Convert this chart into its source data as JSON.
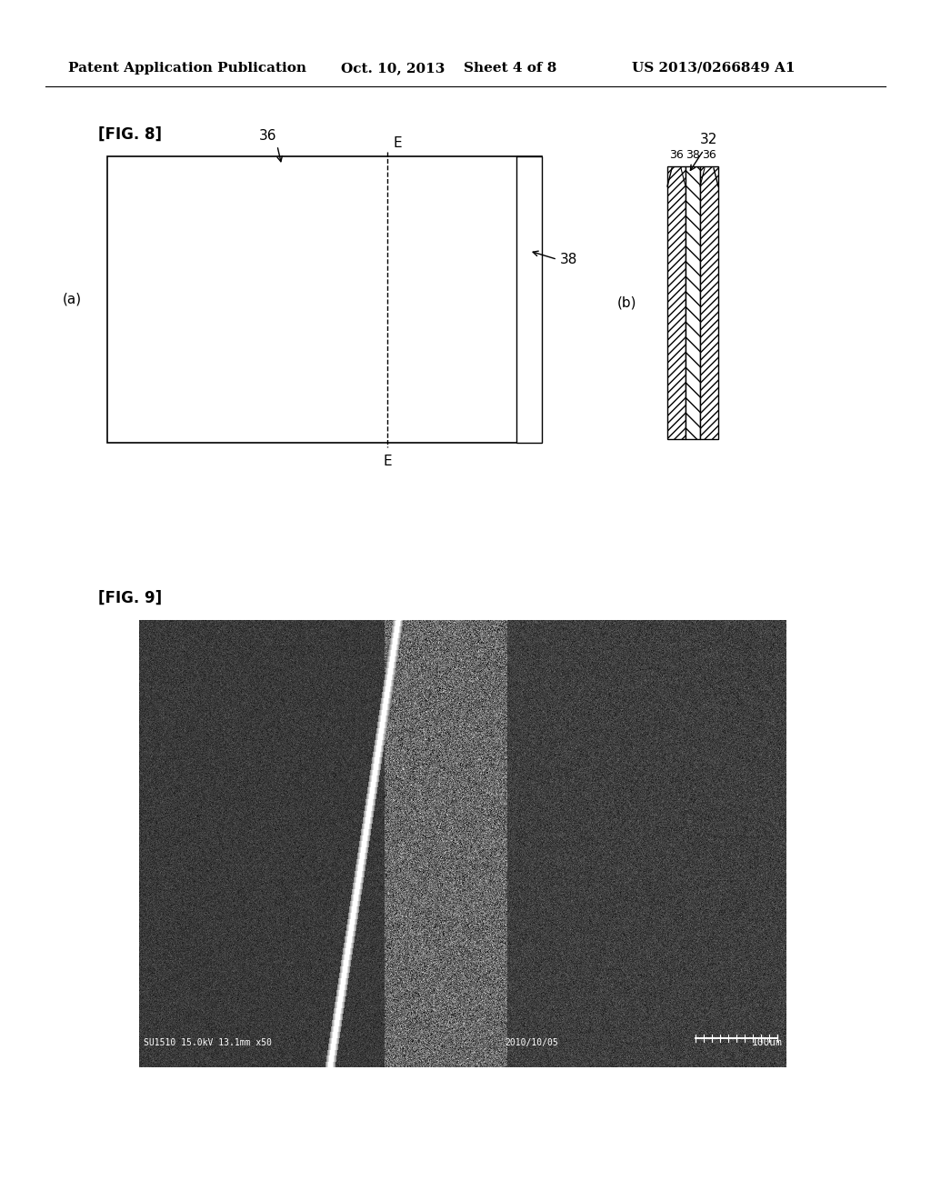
{
  "bg_color": "#ffffff",
  "header_text": "Patent Application Publication",
  "header_date": "Oct. 10, 2013",
  "header_sheet": "Sheet 4 of 8",
  "header_patent": "US 2013/0266849 A1",
  "fig8_label": "[FIG. 8]",
  "fig9_label": "[FIG. 9]",
  "label_a": "(a)",
  "label_b": "(b)",
  "label_36_top": "36",
  "label_E_top": "E",
  "label_E_bottom": "E",
  "label_38": "38",
  "label_32": "32",
  "label_36_38_36": [
    "36",
    "38",
    "36"
  ],
  "sem_caption": "SU1510 15.0kV 13.1mm x50",
  "sem_date": "2010/10/05",
  "sem_scale": "100um"
}
